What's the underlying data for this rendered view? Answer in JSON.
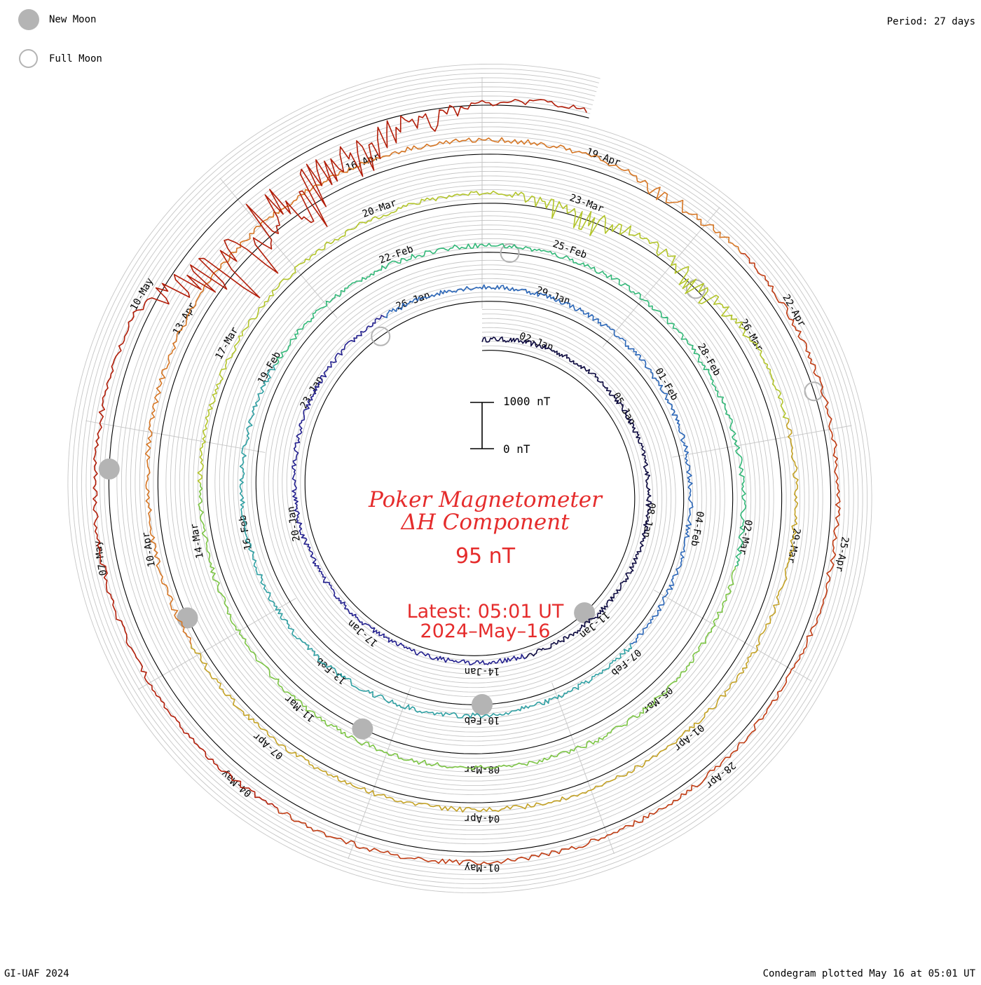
{
  "header": {
    "period": "Period: 27 days",
    "footer_left": "GI-UAF 2024",
    "footer_right": "Condegram plotted May 16 at 05:01 UT"
  },
  "legend": {
    "new_moon": "New Moon",
    "full_moon": "Full Moon",
    "moon_fill": "#b4b4b4"
  },
  "title": {
    "line1": "Poker Magnetometer",
    "line2": "ΔH Component",
    "value": "95 nT",
    "latest": "Latest: 05:01 UT",
    "date": "2024–May–16",
    "color": "#e52c2c"
  },
  "scale": {
    "top_label": "1000 nT",
    "bottom_label": "0 nT"
  },
  "chart_data": {
    "type": "line",
    "title": "Poker Magnetometer ΔH Component",
    "layout": "condegram spiral, 27-day period per revolution",
    "start_date": "2024-01-01",
    "end_date": "2024-05-16",
    "series_colors": [
      "#0d0a40",
      "#221f8e",
      "#2a66b8",
      "#2fa0a3",
      "#32b878",
      "#7cc544",
      "#b3c52b",
      "#c4a225",
      "#d67624",
      "#c03b12",
      "#b21d08"
    ],
    "date_labels": [
      {
        "text": "02-Jan",
        "day": 1.5
      },
      {
        "text": "05-Jan",
        "day": 4.5
      },
      {
        "text": "08-Jan",
        "day": 7.5
      },
      {
        "text": "11-Jan",
        "day": 10.5
      },
      {
        "text": "14-Jan",
        "day": 13.5
      },
      {
        "text": "17-Jan",
        "day": 16.5
      },
      {
        "text": "20-Jan",
        "day": 19.5
      },
      {
        "text": "23-Jan",
        "day": 22.5
      },
      {
        "text": "26-Jan",
        "day": 25.5
      },
      {
        "text": "29-Jan",
        "day": 28.5
      },
      {
        "text": "01-Feb",
        "day": 31.5
      },
      {
        "text": "04-Feb",
        "day": 34.5
      },
      {
        "text": "07-Feb",
        "day": 37.5
      },
      {
        "text": "10-Feb",
        "day": 40.5
      },
      {
        "text": "13-Feb",
        "day": 43.5
      },
      {
        "text": "16-Feb",
        "day": 46.5
      },
      {
        "text": "19-Feb",
        "day": 49.5
      },
      {
        "text": "22-Feb",
        "day": 52.5
      },
      {
        "text": "25-Feb",
        "day": 55.5
      },
      {
        "text": "28-Feb",
        "day": 58.5
      },
      {
        "text": "02-Mar",
        "day": 61.5
      },
      {
        "text": "05-Mar",
        "day": 64.5
      },
      {
        "text": "08-Mar",
        "day": 67.5
      },
      {
        "text": "11-Mar",
        "day": 70.5
      },
      {
        "text": "14-Mar",
        "day": 73.5
      },
      {
        "text": "17-Mar",
        "day": 76.5
      },
      {
        "text": "20-Mar",
        "day": 79.5
      },
      {
        "text": "23-Mar",
        "day": 82.5
      },
      {
        "text": "26-Mar",
        "day": 85.5
      },
      {
        "text": "29-Mar",
        "day": 88.5
      },
      {
        "text": "01-Apr",
        "day": 91.5
      },
      {
        "text": "04-Apr",
        "day": 94.5
      },
      {
        "text": "07-Apr",
        "day": 97.5
      },
      {
        "text": "10-Apr",
        "day": 100.5
      },
      {
        "text": "13-Apr",
        "day": 103.5
      },
      {
        "text": "16-Apr",
        "day": 106.5
      },
      {
        "text": "19-Apr",
        "day": 109.5
      },
      {
        "text": "22-Apr",
        "day": 112.5
      },
      {
        "text": "25-Apr",
        "day": 115.5
      },
      {
        "text": "28-Apr",
        "day": 118.5
      },
      {
        "text": "01-May",
        "day": 121.5
      },
      {
        "text": "04-May",
        "day": 124.5
      },
      {
        "text": "07-May",
        "day": 127.5
      },
      {
        "text": "10-May",
        "day": 130.5
      }
    ],
    "new_moons_day": [
      10.5,
      40.5,
      69.5,
      99.5,
      128.5
    ],
    "full_moons_day": [
      24.5,
      54.5,
      84.5,
      113.5
    ],
    "disturbance_events": [
      {
        "day": 82.5,
        "amplitude_nT": 700
      },
      {
        "day": 84.5,
        "amplitude_nT": 600
      },
      {
        "day": 110.5,
        "amplitude_nT": 300
      },
      {
        "day": 131.5,
        "amplitude_nT": 2500
      },
      {
        "day": 132.5,
        "amplitude_nT": 2000
      },
      {
        "day": 133.5,
        "amplitude_nT": 1400
      },
      {
        "day": 134.5,
        "amplitude_nT": 500
      }
    ]
  }
}
